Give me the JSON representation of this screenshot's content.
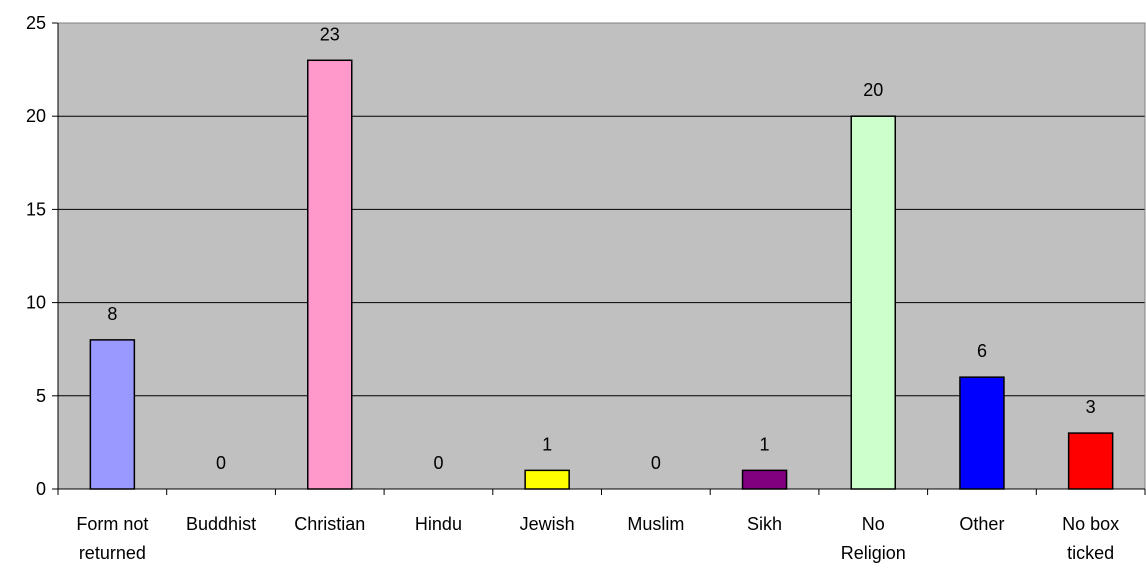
{
  "chart_data": {
    "type": "bar",
    "title": "",
    "xlabel": "",
    "ylabel": "",
    "ylim": [
      0,
      25
    ],
    "yticks": [
      0,
      5,
      10,
      15,
      20,
      25
    ],
    "grid": true,
    "legend": "none",
    "plot_background": "#c0c0c0",
    "categories": [
      [
        "Form not",
        "returned"
      ],
      [
        "Buddhist"
      ],
      [
        "Christian"
      ],
      [
        "Hindu"
      ],
      [
        "Jewish"
      ],
      [
        "Muslim"
      ],
      [
        "Sikh"
      ],
      [
        "No",
        "Religion"
      ],
      [
        "Other"
      ],
      [
        "No box",
        "ticked"
      ]
    ],
    "values": [
      8,
      0,
      23,
      0,
      1,
      0,
      1,
      20,
      6,
      3
    ],
    "data_labels": [
      "8",
      "0",
      "23",
      "0",
      "1",
      "0",
      "1",
      "20",
      "6",
      "3"
    ],
    "colors": [
      "#9999ff",
      "#9999ff",
      "#ff99cc",
      "#ffff99",
      "#ffff00",
      "#ccffcc",
      "#800080",
      "#ccffcc",
      "#0000ff",
      "#ff0000"
    ]
  }
}
